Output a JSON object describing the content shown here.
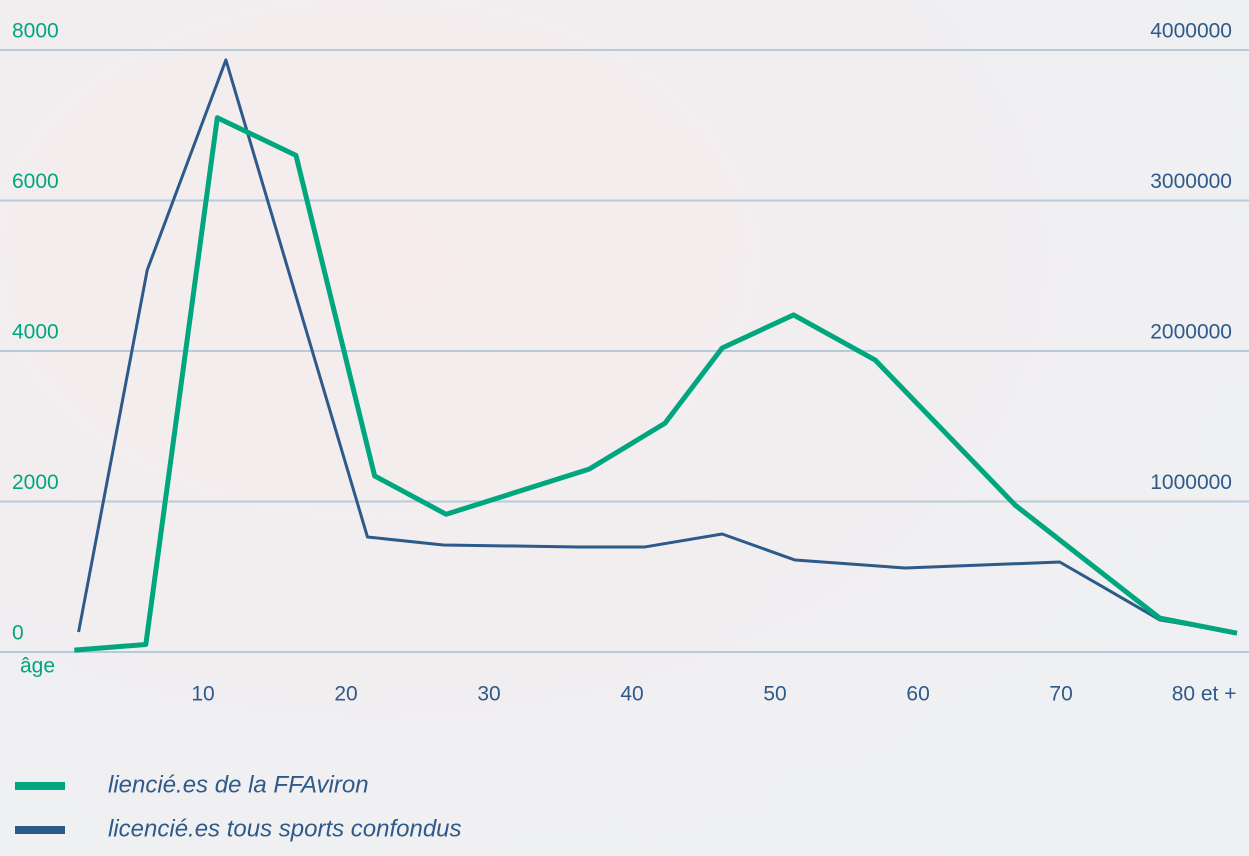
{
  "chart_data": {
    "type": "line",
    "x_label": "âge",
    "x": [
      1,
      6,
      11,
      16.5,
      22,
      27,
      37,
      42.3,
      46.3,
      51.3,
      57,
      66.8,
      76.9,
      82.3
    ],
    "x2": [
      1.3,
      6.1,
      11.6,
      21.5,
      26.8,
      36.2,
      40.9,
      46.3,
      51.4,
      59.1,
      69.9,
      72.7,
      76.9,
      82.3
    ],
    "xlim": [
      0,
      82.3
    ],
    "xticks": [
      10,
      20,
      30,
      40,
      50,
      60,
      70,
      {
        "value": 80,
        "label": "80 et +"
      }
    ],
    "ylim": [
      0,
      8000
    ],
    "yticks": [
      0,
      2000,
      4000,
      6000,
      8000
    ],
    "y2lim": [
      0,
      4000000
    ],
    "y2ticks": [
      1000000,
      2000000,
      3000000,
      4000000
    ],
    "grid": true,
    "series": [
      {
        "name": "liencié.es de la FFAviron",
        "color": "#00a67e",
        "values": [
          25,
          100,
          7100,
          6600,
          2340,
          1830,
          2430,
          3040,
          4040,
          4480,
          3880,
          1950,
          450,
          250
        ]
      },
      {
        "name": "licencié.es tous sports confondus",
        "color": "#2e5a8a",
        "axis": "y2",
        "values": [
          133000,
          2538000,
          3934000,
          764000,
          711000,
          698000,
          698000,
          784000,
          611000,
          558000,
          598000,
          445000,
          213000,
          126000
        ]
      }
    ]
  }
}
